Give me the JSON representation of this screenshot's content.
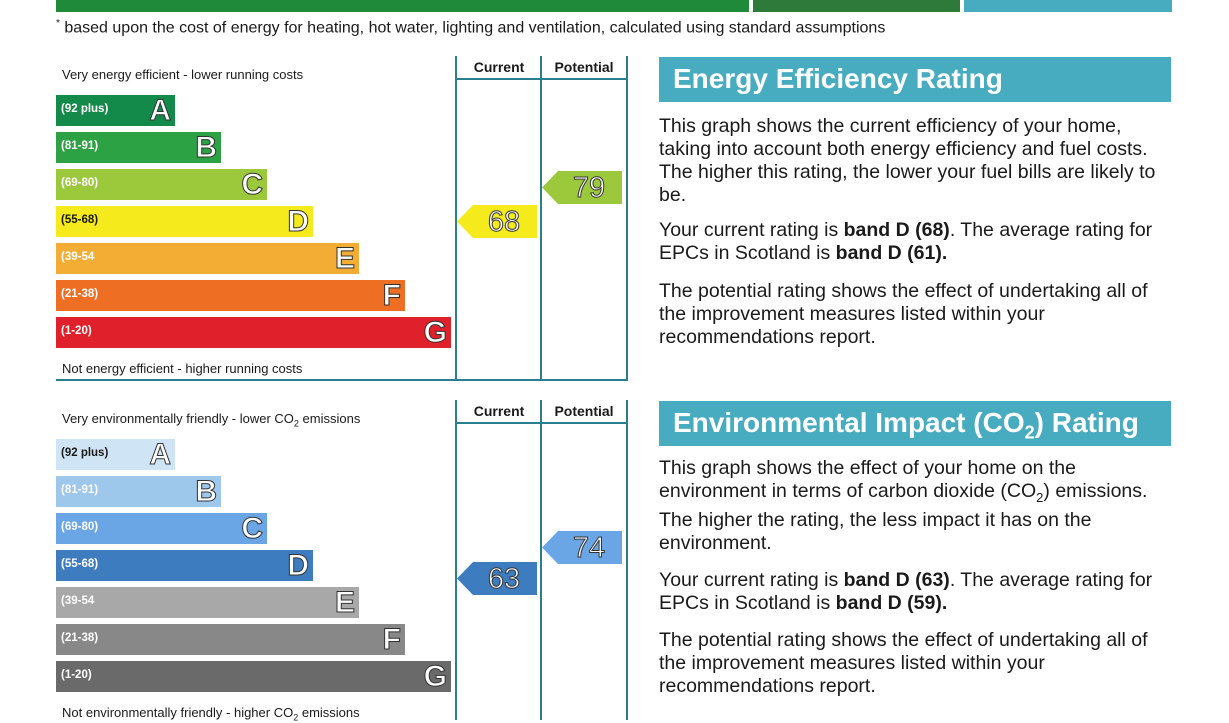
{
  "colors": {
    "top_green": "#1f8a3a",
    "top_dark_green": "#2d7a3a",
    "top_teal": "#48acc0",
    "grid_teal": "#2a7f8f",
    "panel_teal": "#48acc0"
  },
  "footnote": {
    "asterisk": "*",
    "text": " based upon the cost of energy for heating, hot water, lighting and ventilation, calculated using standard assumptions"
  },
  "energy_chart": {
    "top_label": "Very energy efficient - lower running costs",
    "bottom_label": "Not energy efficient - higher running costs",
    "col_current": "Current",
    "col_potential": "Potential",
    "bands": [
      {
        "range": "(92 plus)",
        "letter": "A",
        "color": "#138a4a"
      },
      {
        "range": "(81-91)",
        "letter": "B",
        "color": "#2ca244"
      },
      {
        "range": "(69-80)",
        "letter": "C",
        "color": "#9cc83c"
      },
      {
        "range": "(55-68)",
        "letter": "D",
        "color": "#f4ea1c"
      },
      {
        "range": "(39-54",
        "letter": "E",
        "color": "#f4ad34"
      },
      {
        "range": "(21-38)",
        "letter": "F",
        "color": "#ee6e24"
      },
      {
        "range": "(1-20)",
        "letter": "G",
        "color": "#e0202a"
      }
    ],
    "current": {
      "value": 68,
      "label": "68",
      "band": "D",
      "color": "#f4ea1c"
    },
    "potential": {
      "value": 79,
      "label": "79",
      "band": "C",
      "color": "#9cc83c"
    }
  },
  "environment_chart": {
    "top_label_pre": "Very environmentally friendly - lower CO",
    "top_label_sub": "2",
    "top_label_post": " emissions",
    "bottom_label_pre": "Not environmentally friendly - higher CO",
    "bottom_label_sub": "2",
    "bottom_label_post": " emissions",
    "col_current": "Current",
    "col_potential": "Potential",
    "bands": [
      {
        "range": "(92 plus)",
        "letter": "A",
        "color": "#cfe4f4"
      },
      {
        "range": "(81-91)",
        "letter": "B",
        "color": "#9ec7ec"
      },
      {
        "range": "(69-80)",
        "letter": "C",
        "color": "#6aa6e6"
      },
      {
        "range": "(55-68)",
        "letter": "D",
        "color": "#3e7cc0"
      },
      {
        "range": "(39-54",
        "letter": "E",
        "color": "#a8a8a8"
      },
      {
        "range": "(21-38)",
        "letter": "F",
        "color": "#888888"
      },
      {
        "range": "(1-20)",
        "letter": "G",
        "color": "#6a6a6a"
      }
    ],
    "current": {
      "value": 63,
      "label": "63",
      "band": "D",
      "color": "#3e7cc0"
    },
    "potential": {
      "value": 74,
      "label": "74",
      "band": "C",
      "color": "#6aa6e6"
    }
  },
  "energy_panel": {
    "title": "Energy Efficiency Rating",
    "p1": "This graph shows the current efficiency of your home, taking into account both energy efficiency and fuel costs. The higher this rating, the lower your fuel bills are likely to be.",
    "p2_pre": "Your current rating is ",
    "p2_bold1": "band D (68)",
    "p2_mid": ". The average rating for EPCs in Scotland is ",
    "p2_bold2": "band D (61).",
    "p3": "The potential rating shows the effect of undertaking all of the improvement measures listed within your recommendations report."
  },
  "env_panel": {
    "title_pre": "Environmental Impact (CO",
    "title_sub": "2",
    "title_post": ") Rating",
    "p1_pre": "This graph shows the effect of your home on the environment in terms of carbon dioxide (CO",
    "p1_sub": "2",
    "p1_post": ") emissions. The higher the rating, the less impact it has on the environment.",
    "p2_pre": "Your current rating is ",
    "p2_bold1": "band D (63)",
    "p2_mid": ". The average rating for EPCs in Scotland is ",
    "p2_bold2": "band D (59).",
    "p3": "The potential rating shows the effect of undertaking all of the improvement measures listed within your recommendations report."
  }
}
